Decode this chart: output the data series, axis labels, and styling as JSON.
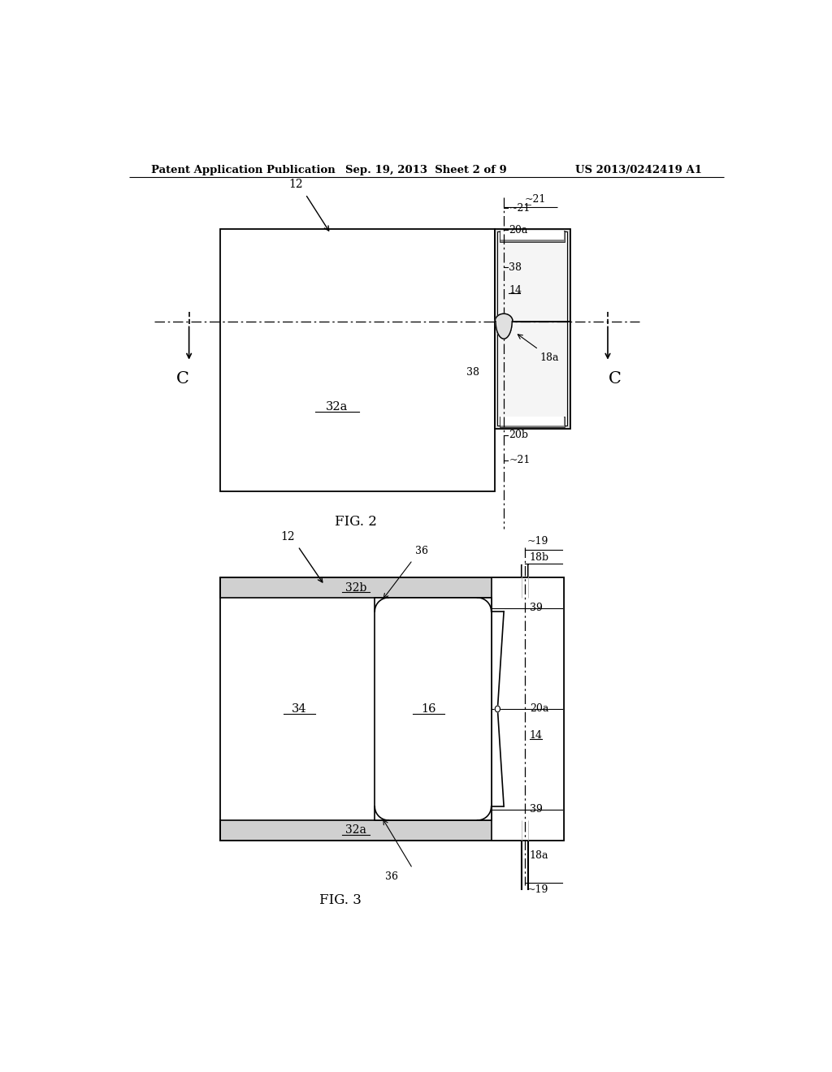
{
  "bg_color": "#ffffff",
  "text_color": "#000000",
  "line_color": "#000000",
  "header_left": "Patent Application Publication",
  "header_center": "Sep. 19, 2013  Sheet 2 of 9",
  "header_right": "US 2013/0242419 A1",
  "fig2_label": "FIG. 2",
  "fig3_label": "FIG. 3"
}
